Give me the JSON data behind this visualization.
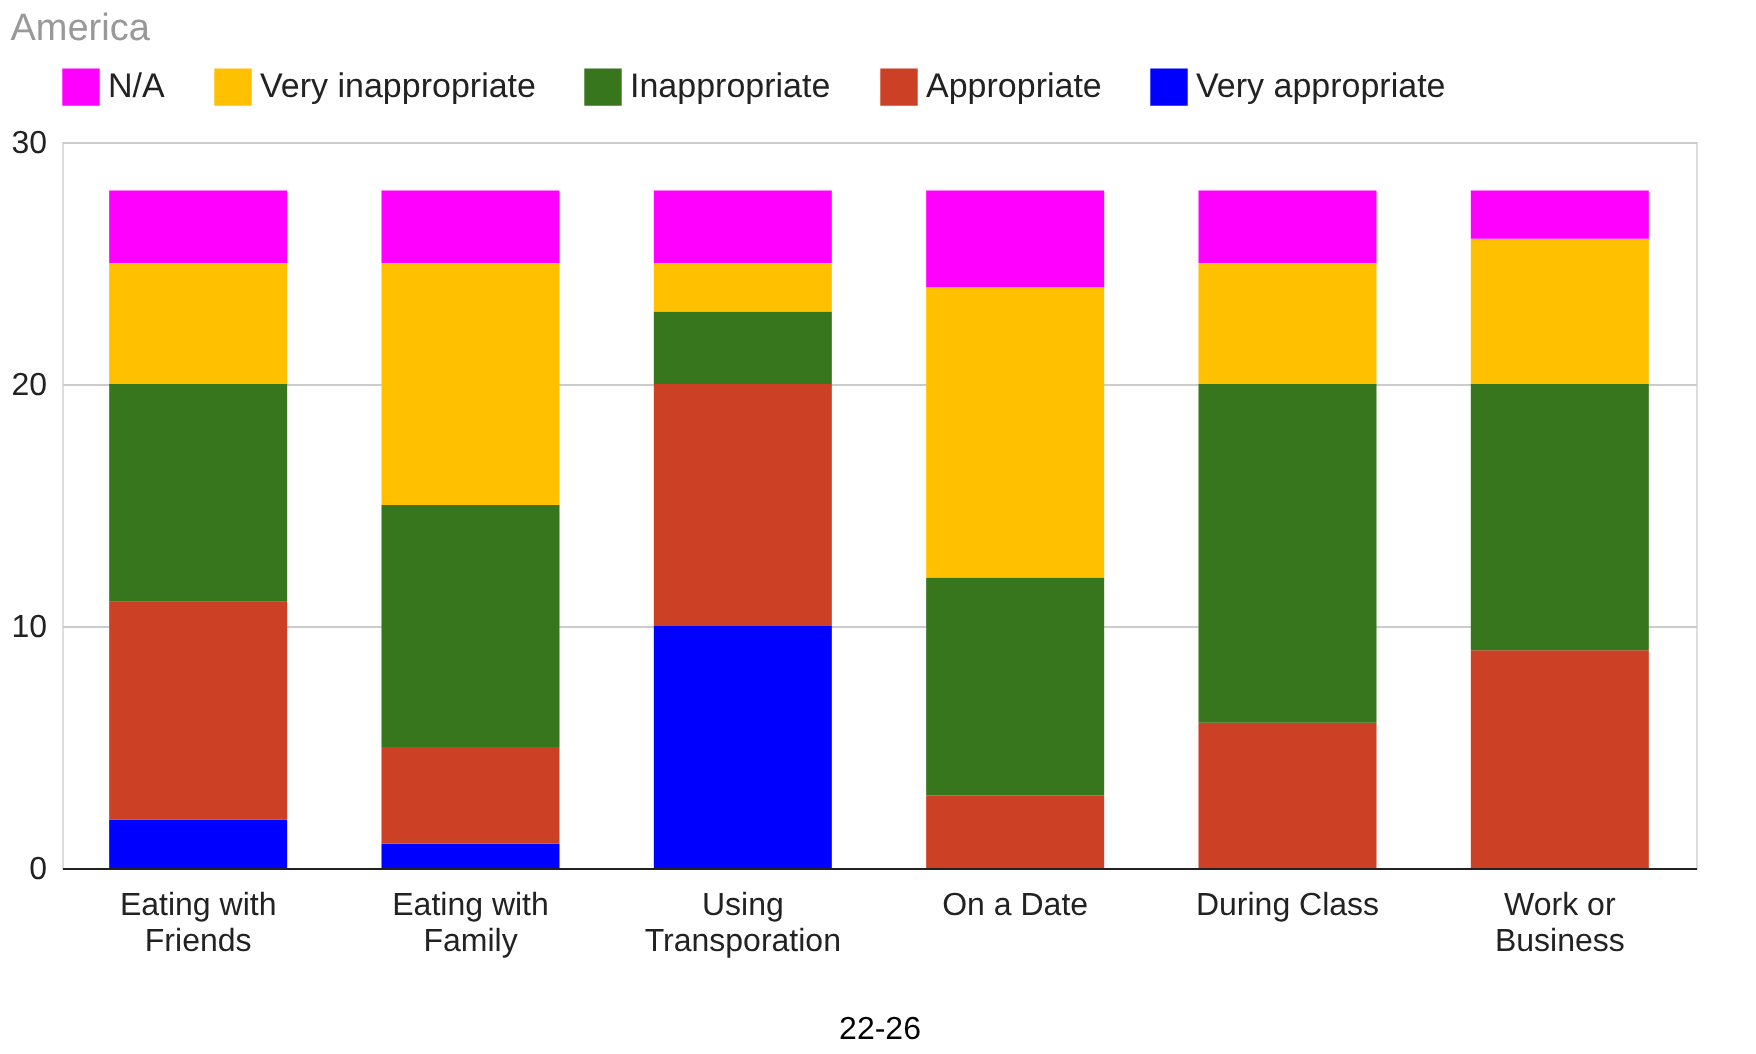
{
  "chart_data": {
    "type": "bar",
    "title": "America",
    "xlabel": "22-26",
    "stacked": true,
    "grid": "y",
    "legend": "top left",
    "categories": [
      "Eating with Friends",
      "Eating with Family",
      "Using Transporation",
      "On a Date",
      "During Class",
      "Work or Business"
    ],
    "ylim": [
      0,
      30
    ],
    "yticks": [
      0,
      10,
      20,
      30
    ],
    "series": [
      {
        "name": "Very appropriate",
        "color": "#0000ff",
        "values": [
          2,
          1,
          10,
          0,
          0,
          0
        ]
      },
      {
        "name": "Appropriate",
        "color": "#cc4125",
        "values": [
          9,
          4,
          10,
          3,
          6,
          9
        ]
      },
      {
        "name": "Inappropriate",
        "color": "#38761d",
        "values": [
          9,
          10,
          3,
          9,
          14,
          11
        ]
      },
      {
        "name": "Very inappropriate",
        "color": "#ffc000",
        "values": [
          5,
          10,
          2,
          12,
          5,
          6
        ]
      },
      {
        "name": "N/A",
        "color": "#ff00ff",
        "values": [
          3,
          3,
          3,
          4,
          3,
          2
        ]
      }
    ]
  }
}
